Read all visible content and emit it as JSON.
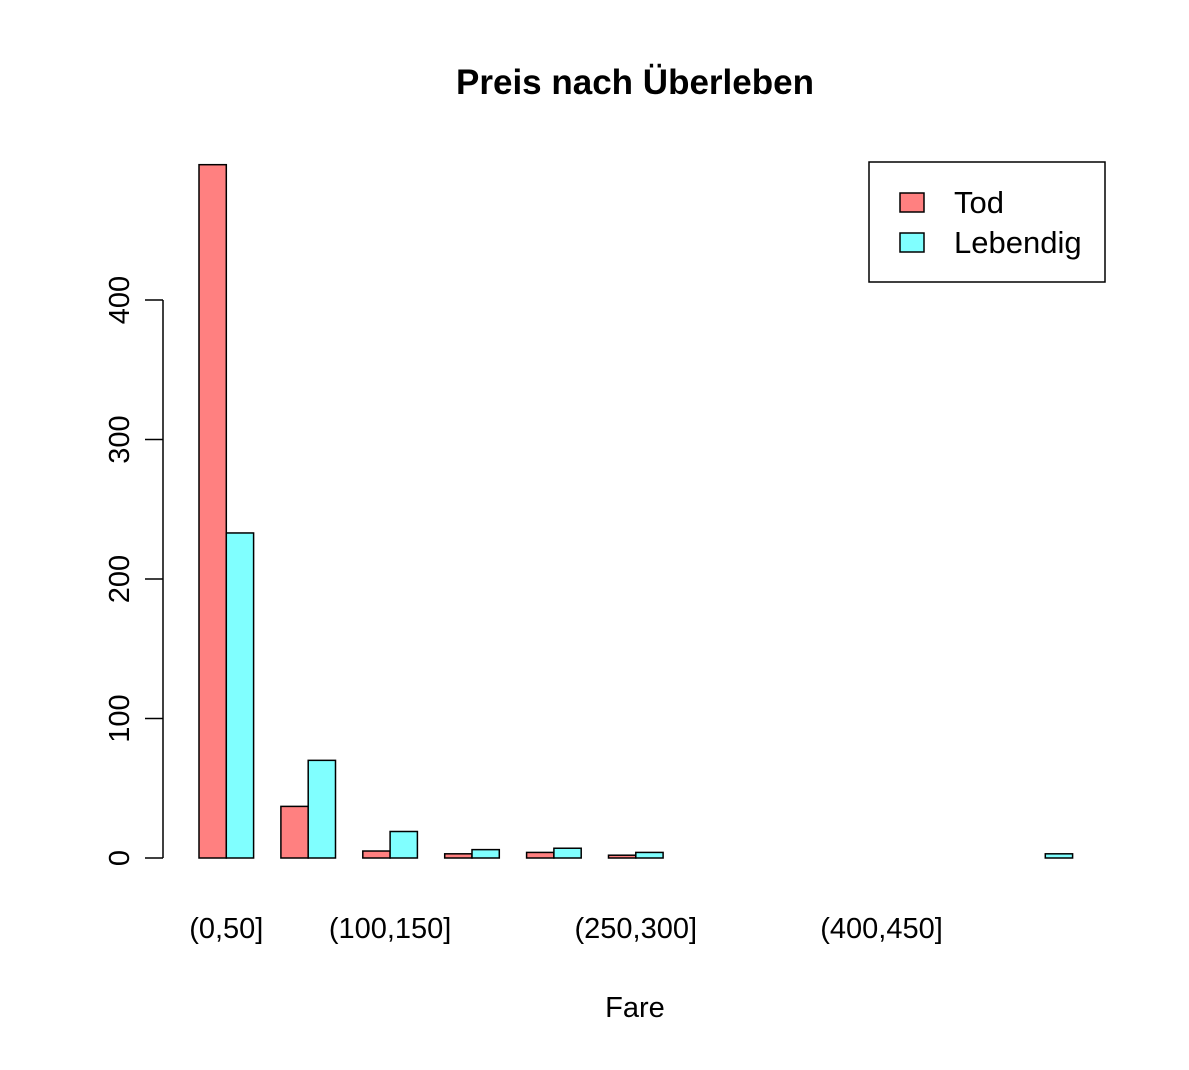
{
  "chart_data": {
    "type": "bar",
    "title": "Preis nach Überleben",
    "xlabel": "Fare",
    "ylabel": "",
    "ylim": [
      0,
      500
    ],
    "y_ticks": [
      0,
      100,
      200,
      300,
      400
    ],
    "categories": [
      "(0,50]",
      "(50,100]",
      "(100,150]",
      "(150,200]",
      "(200,250]",
      "(250,300]",
      "(300,350]",
      "(350,400]",
      "(400,450]",
      "(450,500]",
      "(500,550]"
    ],
    "shown_category_labels": [
      "(0,50]",
      "(100,150]",
      "(250,300]",
      "(400,450]"
    ],
    "series": [
      {
        "name": "Tod",
        "color": "#ff8080",
        "values": [
          497,
          37,
          5,
          3,
          4,
          2,
          0,
          0,
          0,
          0,
          0
        ]
      },
      {
        "name": "Lebendig",
        "color": "#80ffff",
        "values": [
          233,
          70,
          19,
          6,
          7,
          4,
          0,
          0,
          0,
          0,
          3
        ]
      }
    ],
    "legend_position": "top-right",
    "grid": false
  }
}
